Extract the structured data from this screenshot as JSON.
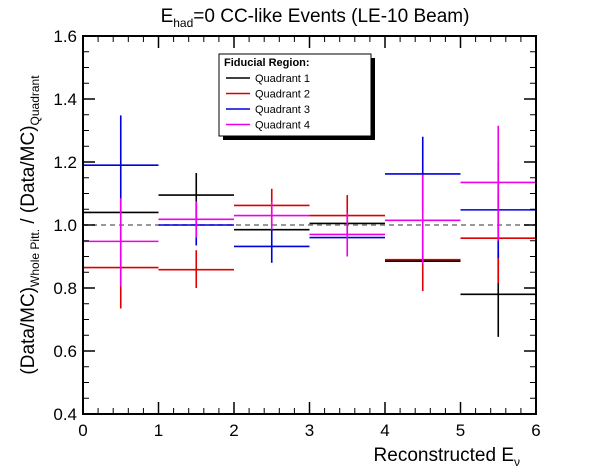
{
  "chart_data": {
    "type": "scatter",
    "title_base": "E",
    "title_sub": "had",
    "title_rest": "=0 CC-like Events (LE-10 Beam)",
    "xlabel_base": "Reconstructed E",
    "xlabel_sub": "ν",
    "ylabel_part1": "(Data/MC)",
    "ylabel_sub1": "Whole Pitt.",
    "ylabel_part2": " / (Data/MC)",
    "ylabel_sub2": "Quadrant",
    "xlim": [
      0,
      6
    ],
    "ylim": [
      0.4,
      1.6
    ],
    "xticks": [
      0,
      1,
      2,
      3,
      4,
      5,
      6
    ],
    "yticks": [
      0.4,
      0.6,
      0.8,
      1.0,
      1.2,
      1.4,
      1.6
    ],
    "xtick_labels": [
      "0",
      "1",
      "2",
      "3",
      "4",
      "5",
      "6"
    ],
    "ytick_labels": [
      "0.4",
      "0.6",
      "0.8",
      "1.0",
      "1.2",
      "1.4",
      "1.6"
    ],
    "reference_line": 1.0,
    "legend_title": "Fiducial Region:",
    "legend_position": "top-center",
    "series": [
      {
        "name": "Quadrant 1",
        "color": "#000000",
        "points": [
          {
            "x": 0.5,
            "y": 1.04,
            "xerr": 0.5,
            "ylo": 1.04,
            "yhi": 1.04
          },
          {
            "x": 1.5,
            "y": 1.095,
            "xerr": 0.5,
            "ylo": 1.015,
            "yhi": 1.165
          },
          {
            "x": 2.5,
            "y": 0.985,
            "xerr": 0.5,
            "ylo": 0.985,
            "yhi": 0.985
          },
          {
            "x": 3.5,
            "y": 1.005,
            "xerr": 0.5,
            "ylo": 1.005,
            "yhi": 1.005
          },
          {
            "x": 4.5,
            "y": 0.885,
            "xerr": 0.5,
            "ylo": 0.885,
            "yhi": 0.885
          },
          {
            "x": 5.5,
            "y": 0.78,
            "xerr": 0.5,
            "ylo": 0.645,
            "yhi": 0.915
          }
        ]
      },
      {
        "name": "Quadrant 2",
        "color": "#dd0000",
        "points": [
          {
            "x": 0.5,
            "y": 0.865,
            "xerr": 0.5,
            "ylo": 0.735,
            "yhi": 1.0
          },
          {
            "x": 1.5,
            "y": 0.858,
            "xerr": 0.5,
            "ylo": 0.8,
            "yhi": 0.92
          },
          {
            "x": 2.5,
            "y": 1.062,
            "xerr": 0.5,
            "ylo": 1.0,
            "yhi": 1.115
          },
          {
            "x": 3.5,
            "y": 1.03,
            "xerr": 0.5,
            "ylo": 0.965,
            "yhi": 1.095
          },
          {
            "x": 4.5,
            "y": 0.89,
            "xerr": 0.5,
            "ylo": 0.79,
            "yhi": 0.985
          },
          {
            "x": 5.5,
            "y": 0.958,
            "xerr": 0.5,
            "ylo": 0.815,
            "yhi": 1.1
          }
        ]
      },
      {
        "name": "Quadrant 3",
        "color": "#0000dd",
        "points": [
          {
            "x": 0.5,
            "y": 1.19,
            "xerr": 0.5,
            "ylo": 1.035,
            "yhi": 1.348
          },
          {
            "x": 1.5,
            "y": 1.0,
            "xerr": 0.5,
            "ylo": 0.935,
            "yhi": 1.07
          },
          {
            "x": 2.5,
            "y": 0.932,
            "xerr": 0.5,
            "ylo": 0.88,
            "yhi": 0.985
          },
          {
            "x": 3.5,
            "y": 0.96,
            "xerr": 0.5,
            "ylo": 0.96,
            "yhi": 0.96
          },
          {
            "x": 4.5,
            "y": 1.162,
            "xerr": 0.5,
            "ylo": 1.045,
            "yhi": 1.28
          },
          {
            "x": 5.5,
            "y": 1.048,
            "xerr": 0.5,
            "ylo": 0.895,
            "yhi": 1.2
          }
        ]
      },
      {
        "name": "Quadrant 4",
        "color": "#ee00ee",
        "points": [
          {
            "x": 0.5,
            "y": 0.948,
            "xerr": 0.5,
            "ylo": 0.805,
            "yhi": 1.085
          },
          {
            "x": 1.5,
            "y": 1.018,
            "xerr": 0.5,
            "ylo": 0.96,
            "yhi": 1.075
          },
          {
            "x": 2.5,
            "y": 1.03,
            "xerr": 0.5,
            "ylo": 0.985,
            "yhi": 1.075
          },
          {
            "x": 3.5,
            "y": 0.97,
            "xerr": 0.5,
            "ylo": 0.9,
            "yhi": 1.04
          },
          {
            "x": 4.5,
            "y": 1.015,
            "xerr": 0.5,
            "ylo": 0.875,
            "yhi": 1.16
          },
          {
            "x": 5.5,
            "y": 1.135,
            "xerr": 0.5,
            "ylo": 0.95,
            "yhi": 1.315
          }
        ]
      }
    ]
  }
}
